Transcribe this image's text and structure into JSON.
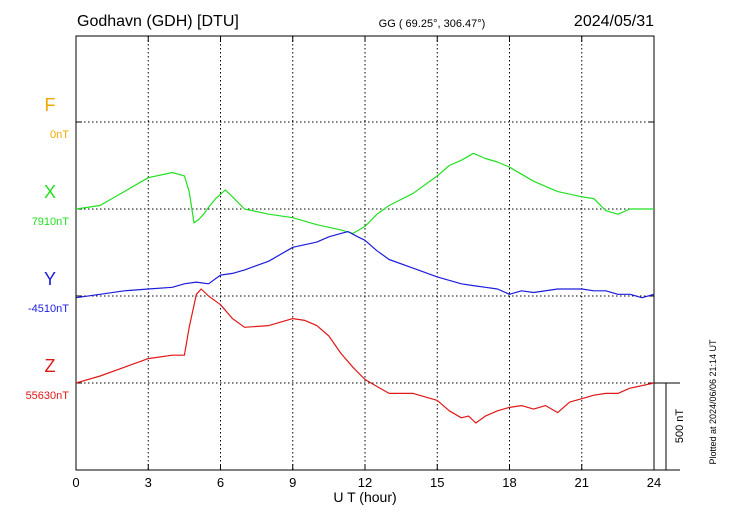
{
  "header": {
    "station": "Godhavn (GDH)  [DTU]",
    "coords": "GG ( 69.25°, 306.47°)",
    "date": "2024/05/31"
  },
  "footer": {
    "plotted": "Plotted at 2024/06/06 21:14 UT"
  },
  "chart_data": {
    "type": "line",
    "title": "Godhavn (GDH)  [DTU]",
    "xlabel": "U T (hour)",
    "xlim": [
      0,
      24
    ],
    "xticks": [
      0,
      3,
      6,
      9,
      12,
      15,
      18,
      21,
      24
    ],
    "grid": true,
    "scale_bar": {
      "label": "500 nT",
      "value_nT": 500
    },
    "series": [
      {
        "name": "F",
        "baseline_label": "0nT",
        "baseline_nT": 0,
        "color": "#f0a800",
        "x": [],
        "y": []
      },
      {
        "name": "X",
        "baseline_label": "7910nT",
        "baseline_nT": 7910,
        "color": "#22e022",
        "x": [
          0,
          1,
          2,
          3,
          4,
          4.5,
          4.7,
          4.9,
          5.1,
          5.3,
          5.5,
          5.8,
          6.2,
          6.5,
          7,
          8,
          9,
          10,
          11,
          11.5,
          12,
          12.5,
          13,
          14,
          15,
          15.5,
          16,
          16.5,
          17,
          17.5,
          18,
          18.5,
          19,
          19.5,
          20,
          21,
          21.5,
          22,
          22.5,
          23,
          24
        ],
        "y": [
          7910,
          7930,
          8010,
          8090,
          8120,
          8100,
          8010,
          7830,
          7850,
          7880,
          7920,
          7970,
          8020,
          7980,
          7910,
          7880,
          7860,
          7820,
          7790,
          7770,
          7810,
          7880,
          7930,
          8000,
          8100,
          8160,
          8190,
          8230,
          8200,
          8180,
          8150,
          8110,
          8070,
          8040,
          8010,
          7980,
          7970,
          7900,
          7880,
          7910,
          7910
        ]
      },
      {
        "name": "Y",
        "baseline_label": "-4510nT",
        "baseline_nT": -4510,
        "color": "#1c1cdc",
        "x": [
          0,
          1,
          2,
          3,
          4,
          4.5,
          5,
          5.5,
          6,
          6.5,
          7,
          8,
          9,
          10,
          10.5,
          11,
          11.3,
          11.7,
          12,
          12.5,
          13,
          14,
          15,
          16,
          16.5,
          17,
          17.5,
          18,
          18.5,
          19,
          20,
          21,
          21.5,
          22,
          22.5,
          23,
          23.5,
          24
        ],
        "y": [
          -4520,
          -4500,
          -4480,
          -4470,
          -4460,
          -4440,
          -4430,
          -4440,
          -4390,
          -4380,
          -4360,
          -4310,
          -4230,
          -4200,
          -4170,
          -4150,
          -4140,
          -4170,
          -4190,
          -4250,
          -4300,
          -4350,
          -4400,
          -4440,
          -4450,
          -4460,
          -4470,
          -4500,
          -4480,
          -4490,
          -4470,
          -4470,
          -4480,
          -4480,
          -4500,
          -4500,
          -4520,
          -4500
        ]
      },
      {
        "name": "Z",
        "baseline_label": "55630nT",
        "baseline_nT": 55630,
        "color": "#e01818",
        "x": [
          0,
          1,
          2,
          3,
          4,
          4.5,
          4.7,
          5,
          5.2,
          5.5,
          5.8,
          6,
          6.5,
          7,
          8,
          9,
          9.5,
          10,
          10.5,
          11,
          11.5,
          12,
          12.5,
          13,
          14,
          15,
          15.5,
          16,
          16.3,
          16.6,
          17,
          17.5,
          18,
          18.5,
          19,
          19.5,
          20,
          20.5,
          21,
          21.5,
          22,
          22.5,
          23,
          24
        ],
        "y": [
          55630,
          55670,
          55720,
          55770,
          55790,
          55790,
          55950,
          56140,
          56170,
          56130,
          56100,
          56080,
          56000,
          55950,
          55960,
          56000,
          55990,
          55960,
          55900,
          55800,
          55720,
          55650,
          55610,
          55570,
          55570,
          55530,
          55470,
          55430,
          55440,
          55400,
          55440,
          55470,
          55490,
          55500,
          55480,
          55500,
          55460,
          55520,
          55540,
          55560,
          55570,
          55570,
          55600,
          55630
        ]
      }
    ]
  }
}
